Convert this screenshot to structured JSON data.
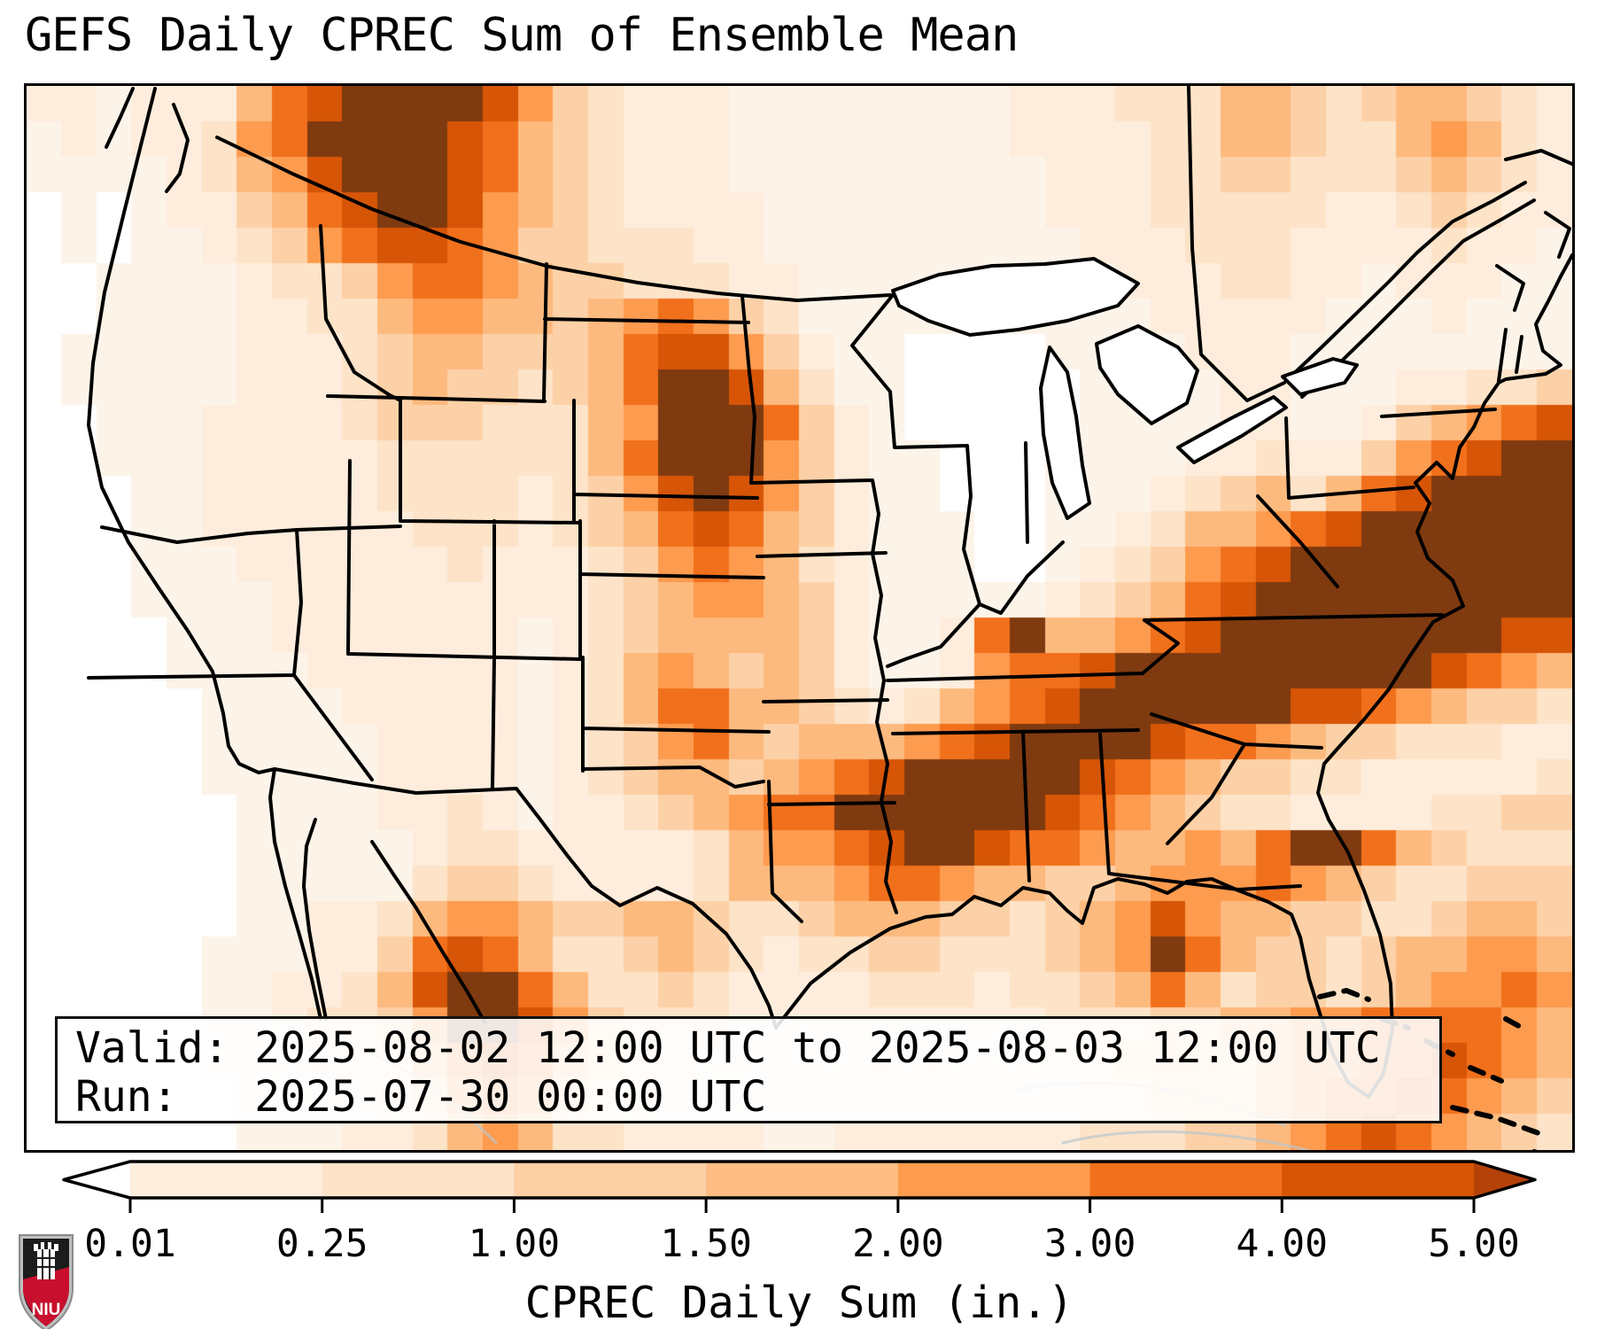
{
  "title": "GEFS Daily CPREC Sum of Ensemble Mean",
  "info_box": {
    "line1": "Valid: 2025-08-02 12:00 UTC to 2025-08-03 12:00 UTC",
    "line2": "Run:   2025-07-30 00:00 UTC"
  },
  "colorbar": {
    "label": "CPREC Daily Sum (in.)",
    "ticks": [
      "0.01",
      "0.25",
      "1.00",
      "1.50",
      "2.00",
      "3.00",
      "4.00",
      "5.00"
    ],
    "segment_colors": [
      "#feeedd",
      "#fde3c8",
      "#fdd0a5",
      "#fdbd84",
      "#fd9c4f",
      "#f1701c",
      "#d65506"
    ],
    "under_color": "#ffffff",
    "over_color": "#b54209",
    "outline_color": "#000000"
  },
  "logo": {
    "text": "NIU",
    "red": "#c8102e",
    "dark": "#1c1c1c",
    "silver": "#bfbfbf"
  },
  "map": {
    "border_color": "#000000",
    "cols": 44,
    "rows": 30,
    "palette": {
      "0": "#ffffff",
      "1": "#fdf4e9",
      "2": "#feeddc",
      "3": "#fde3c8",
      "4": "#fdd1a7",
      "5": "#fdba7e",
      "6": "#fd9b4f",
      "7": "#f1701c",
      "8": "#d65506",
      "9": "#7f3a10"
    },
    "grid_rows": [
      "22122257899998643222111111112223335543455432",
      "12122367999987543222111111112222335543356532",
      "11112356899987543222111111111222334433345432",
      "01012245789986543222211111111222333332234322",
      "01011234678876443332211111111122233322223221",
      "00111123346776544333221111111112223322122211",
      "00111122335665545676431111111111222221112111",
      "01111122234554445788642110000111122211111111",
      "01111122234544345799853110000011112211122334",
      "00111222234443335699974210000011112211245678",
      "00111222223333335799964211000111122322467899",
      "00011222223333234689864211000111234535789999",
      "00011222222333234578754211100112355678999999",
      "00011122222232223467653211100123467899999999",
      "00011112222222223456654211111234578999999999",
      "00001112222222123455554211279556789999999988",
      "00001111222222123565454211267789999999998765",
      "00000111122222123577554323567899999988765443",
      "00000111112222123467545556789999877654433322",
      "00000111112222123455456789999987654433222223",
      "00000011112232122345677999999876543322223344",
      "00000011111233222223566789987765565799754333",
      "00000011111344322223555677655445666765433444",
      "00000011223566544554334555443456865544334554",
      "00000111224787533454323344333456975443455665",
      "00000112235899753343222233323345753443456676",
      "00000112334699864333222222222333445566777765",
      "00000112233578754332222222222334444566778765",
      "00000011223467643322222222222233444567787654",
      "00000011122356533222211222222233344567876543"
    ]
  }
}
